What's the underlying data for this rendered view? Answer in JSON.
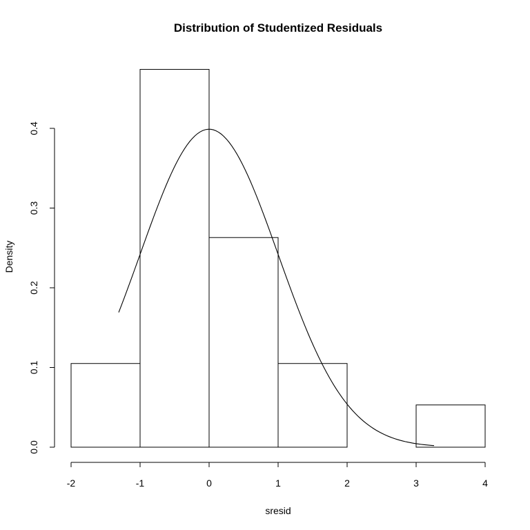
{
  "chart_data": {
    "type": "histogram",
    "title": "Distribution of Studentized Residuals",
    "xlabel": "sresid",
    "ylabel": "Density",
    "xlim": [
      -2,
      4
    ],
    "ylim": [
      0,
      0.4
    ],
    "bins": [
      {
        "from": -2,
        "to": -1,
        "density": 0.105
      },
      {
        "from": -1,
        "to": 0,
        "density": 0.474
      },
      {
        "from": 0,
        "to": 1,
        "density": 0.263
      },
      {
        "from": 1,
        "to": 2,
        "density": 0.105
      },
      {
        "from": 2,
        "to": 3,
        "density": 0.0
      },
      {
        "from": 3,
        "to": 4,
        "density": 0.053
      }
    ],
    "x_ticks": [
      "-2",
      "-1",
      "0",
      "1",
      "2",
      "3",
      "4"
    ],
    "x_tick_values": [
      -2,
      -1,
      0,
      1,
      2,
      3,
      4
    ],
    "y_ticks": [
      "0.0",
      "0.1",
      "0.2",
      "0.3",
      "0.4"
    ],
    "y_tick_values": [
      0.0,
      0.1,
      0.2,
      0.3,
      0.4
    ],
    "overlay": {
      "type": "normal-density-curve",
      "mean": 0,
      "sd": 1,
      "x_range": [
        -1.31,
        3.26
      ]
    },
    "grid": false,
    "legend": "none"
  }
}
